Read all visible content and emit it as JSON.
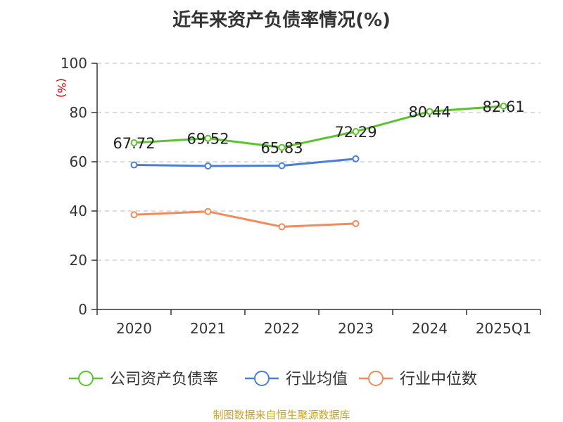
{
  "chart_data": {
    "type": "line",
    "title": "近年来资产负债率情况(%)",
    "ylabel": "(%)",
    "xlabel": "",
    "ylim": [
      0,
      100
    ],
    "yticks": [
      0,
      20,
      40,
      60,
      80,
      100
    ],
    "grid": true,
    "legend_position": "bottom",
    "categories": [
      "2020",
      "2021",
      "2022",
      "2023",
      "2024",
      "2025Q1"
    ],
    "series": [
      {
        "name": "公司资产负债率",
        "color": "#5cc22f",
        "values": [
          67.72,
          69.52,
          65.83,
          72.29,
          80.44,
          82.61
        ],
        "labels": [
          "67.72",
          "69.52",
          "65.83",
          "72.29",
          "80.44",
          "82.61"
        ]
      },
      {
        "name": "行业均值",
        "color": "#4a7fd6",
        "values": [
          58.7,
          58.3,
          58.4,
          61.2,
          null,
          null
        ]
      },
      {
        "name": "行业中位数",
        "color": "#f28b5b",
        "values": [
          38.5,
          39.8,
          33.6,
          34.9,
          null,
          null
        ]
      }
    ]
  },
  "source": "制图数据来自恒生聚源数据库"
}
